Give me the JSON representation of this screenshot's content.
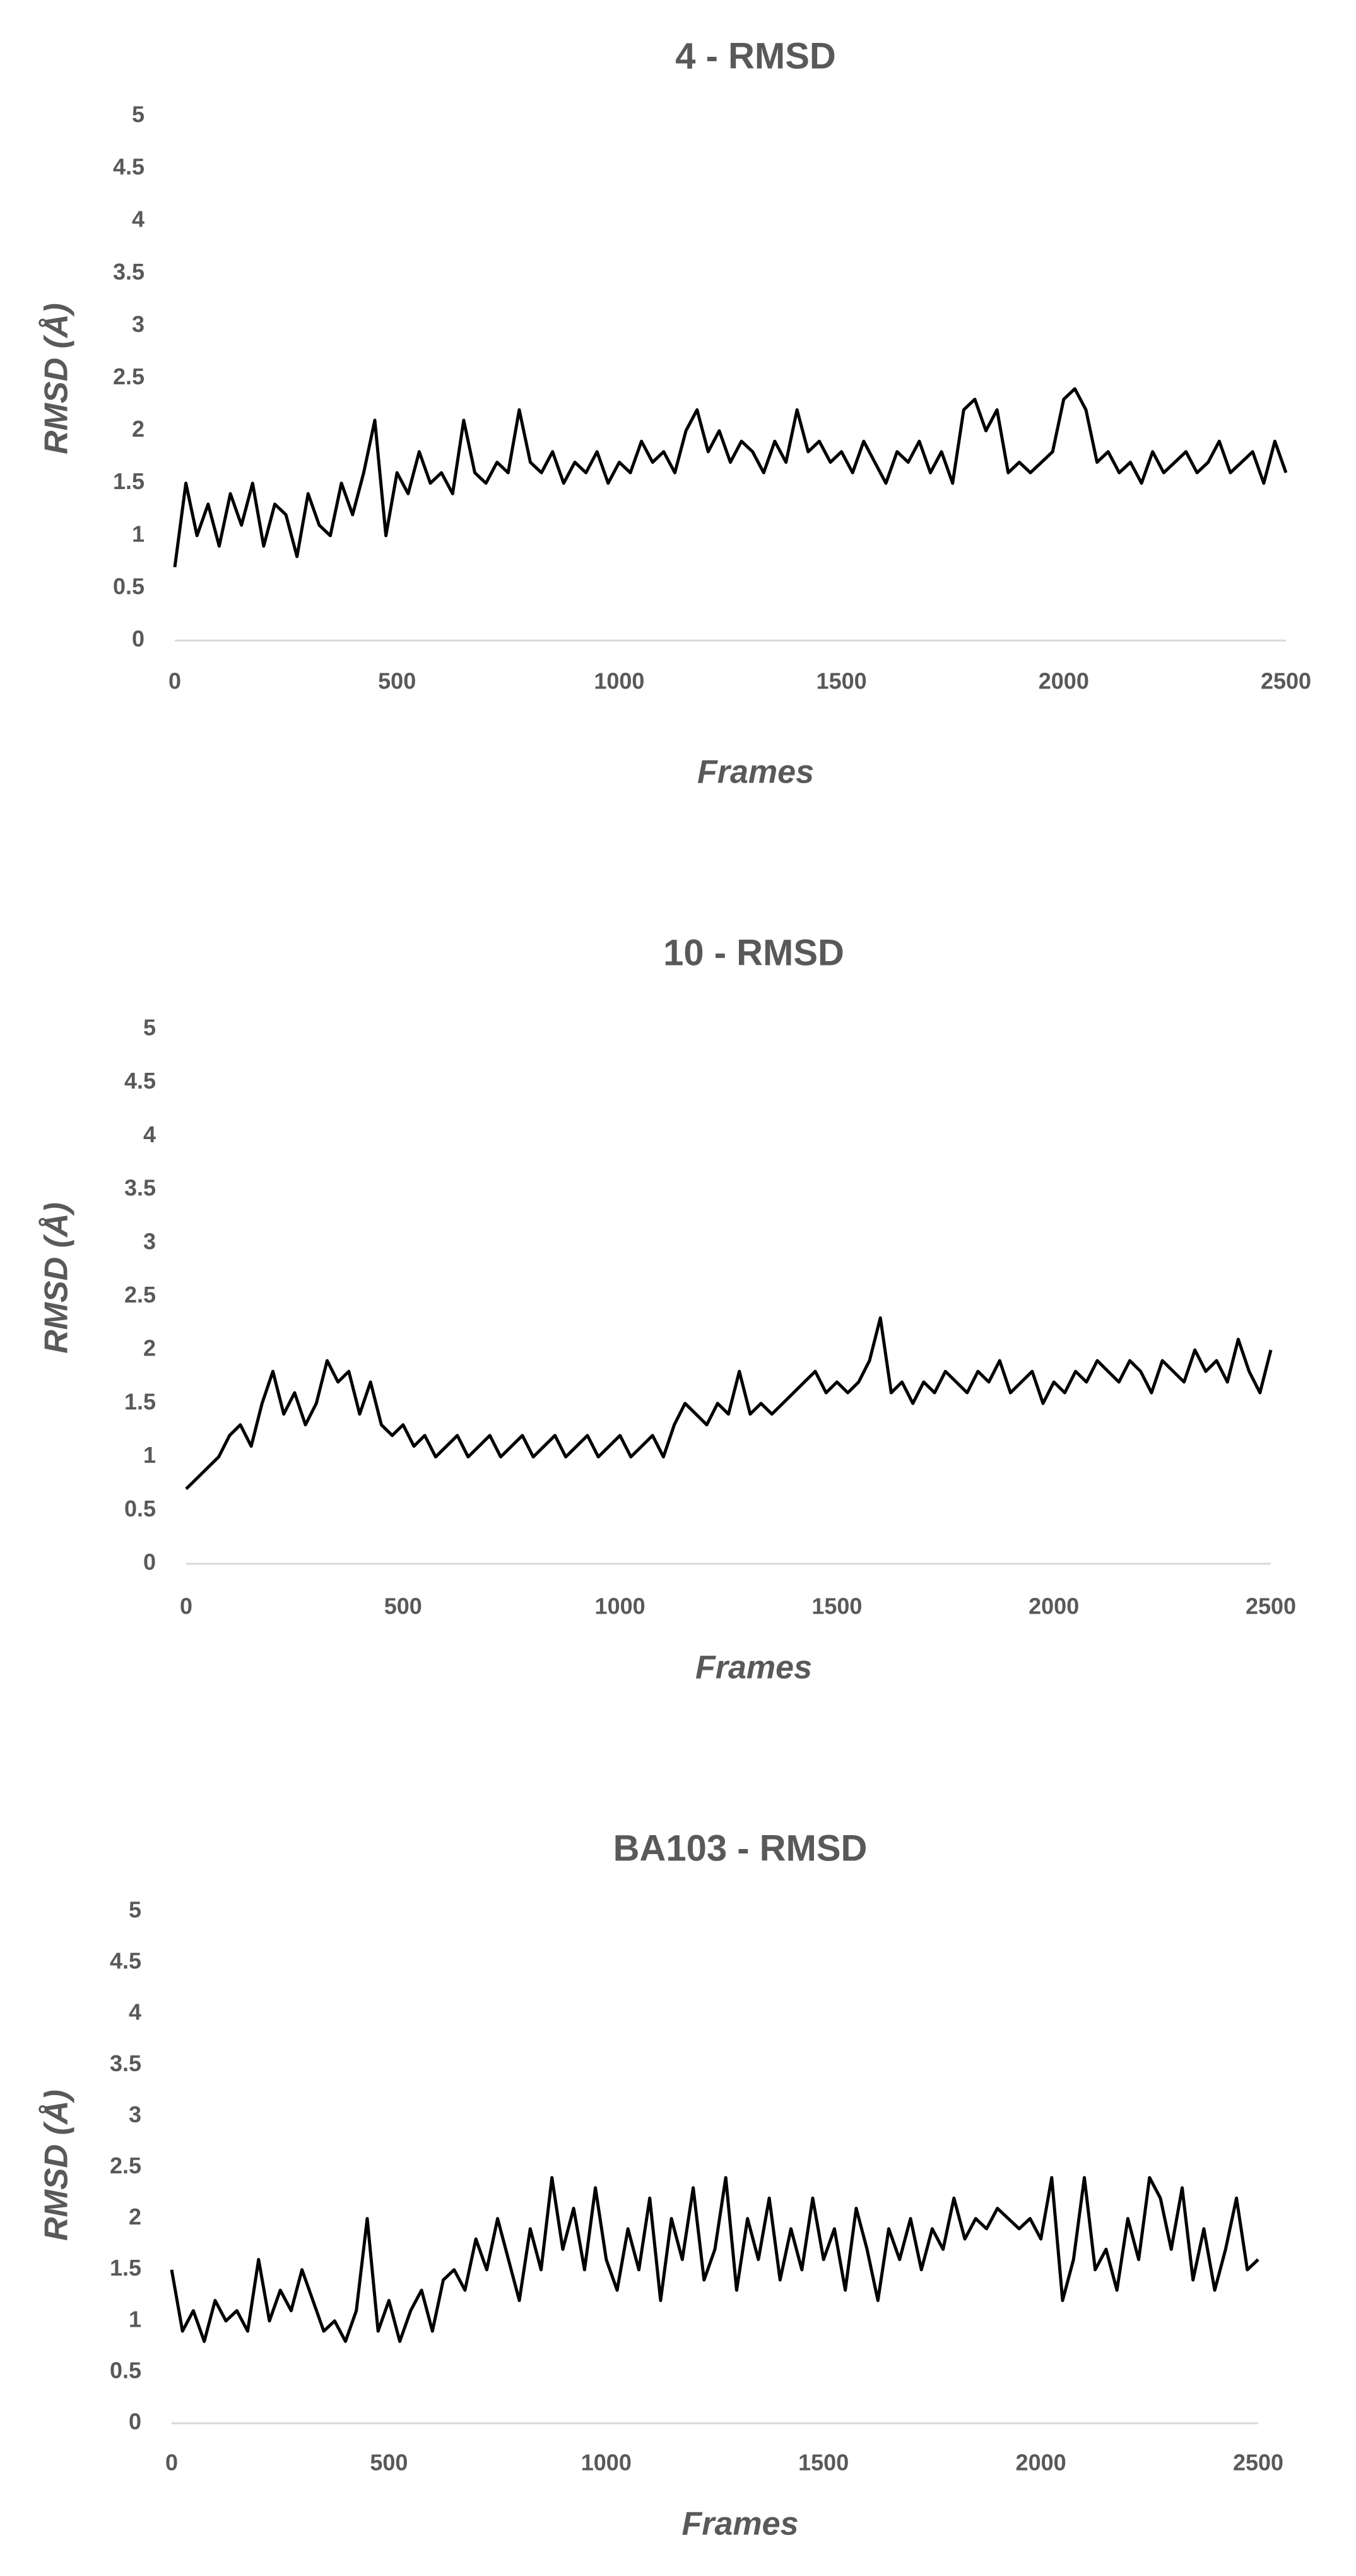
{
  "chart_data": [
    {
      "type": "line",
      "title": "4 - RMSD",
      "x_label": "Frames",
      "y_label": "RMSD (Å)",
      "xlim": [
        0,
        2500
      ],
      "xticks": [
        0,
        500,
        1000,
        1500,
        2000,
        2500
      ],
      "ylim": [
        0,
        5
      ],
      "yticks": [
        0,
        0.5,
        1,
        1.5,
        2,
        2.5,
        3,
        3.5,
        4,
        4.5,
        5
      ],
      "x": [
        0,
        25,
        50,
        75,
        100,
        125,
        150,
        175,
        200,
        225,
        250,
        275,
        300,
        325,
        350,
        375,
        400,
        425,
        450,
        475,
        500,
        525,
        550,
        575,
        600,
        625,
        650,
        675,
        700,
        725,
        750,
        775,
        800,
        825,
        850,
        875,
        900,
        925,
        950,
        975,
        1000,
        1025,
        1050,
        1075,
        1100,
        1125,
        1150,
        1175,
        1200,
        1225,
        1250,
        1275,
        1300,
        1325,
        1350,
        1375,
        1400,
        1425,
        1450,
        1475,
        1500,
        1525,
        1550,
        1575,
        1600,
        1625,
        1650,
        1675,
        1700,
        1725,
        1750,
        1775,
        1800,
        1825,
        1850,
        1875,
        1900,
        1925,
        1950,
        1975,
        2000,
        2025,
        2050,
        2075,
        2100,
        2125,
        2150,
        2175,
        2200,
        2225,
        2250,
        2275,
        2300,
        2325,
        2350,
        2375,
        2400,
        2425,
        2450,
        2475,
        2500
      ],
      "series": [
        {
          "color": "#000000",
          "values": [
            0.7,
            1.5,
            1.0,
            1.3,
            0.9,
            1.4,
            1.1,
            1.5,
            0.9,
            1.3,
            1.2,
            0.8,
            1.4,
            1.1,
            1.0,
            1.5,
            1.2,
            1.6,
            2.1,
            1.0,
            1.6,
            1.4,
            1.8,
            1.5,
            1.6,
            1.4,
            2.1,
            1.6,
            1.5,
            1.7,
            1.6,
            2.2,
            1.7,
            1.6,
            1.8,
            1.5,
            1.7,
            1.6,
            1.8,
            1.5,
            1.7,
            1.6,
            1.9,
            1.7,
            1.8,
            1.6,
            2.0,
            2.2,
            1.8,
            2.0,
            1.7,
            1.9,
            1.8,
            1.6,
            1.9,
            1.7,
            2.2,
            1.8,
            1.9,
            1.7,
            1.8,
            1.6,
            1.9,
            1.7,
            1.5,
            1.8,
            1.7,
            1.9,
            1.6,
            1.8,
            1.5,
            2.2,
            2.3,
            2.0,
            2.2,
            1.6,
            1.7,
            1.6,
            1.7,
            1.8,
            2.3,
            2.4,
            2.2,
            1.7,
            1.8,
            1.6,
            1.7,
            1.5,
            1.8,
            1.6,
            1.7,
            1.8,
            1.6,
            1.7,
            1.9,
            1.6,
            1.7,
            1.8,
            1.5,
            1.9,
            1.6
          ]
        }
      ]
    },
    {
      "type": "line",
      "title": "10 - RMSD",
      "x_label": "Frames",
      "y_label": "RMSD (Å)",
      "xlim": [
        0,
        2500
      ],
      "xticks": [
        0,
        500,
        1000,
        1500,
        2000,
        2500
      ],
      "ylim": [
        0,
        5
      ],
      "yticks": [
        0,
        0.5,
        1,
        1.5,
        2,
        2.5,
        3,
        3.5,
        4,
        4.5,
        5
      ],
      "x": [
        0,
        25,
        50,
        75,
        100,
        125,
        150,
        175,
        200,
        225,
        250,
        275,
        300,
        325,
        350,
        375,
        400,
        425,
        450,
        475,
        500,
        525,
        550,
        575,
        600,
        625,
        650,
        675,
        700,
        725,
        750,
        775,
        800,
        825,
        850,
        875,
        900,
        925,
        950,
        975,
        1000,
        1025,
        1050,
        1075,
        1100,
        1125,
        1150,
        1175,
        1200,
        1225,
        1250,
        1275,
        1300,
        1325,
        1350,
        1375,
        1400,
        1425,
        1450,
        1475,
        1500,
        1525,
        1550,
        1575,
        1600,
        1625,
        1650,
        1675,
        1700,
        1725,
        1750,
        1775,
        1800,
        1825,
        1850,
        1875,
        1900,
        1925,
        1950,
        1975,
        2000,
        2025,
        2050,
        2075,
        2100,
        2125,
        2150,
        2175,
        2200,
        2225,
        2250,
        2275,
        2300,
        2325,
        2350,
        2375,
        2400,
        2425,
        2450,
        2475,
        2500
      ],
      "series": [
        {
          "color": "#000000",
          "values": [
            0.7,
            0.8,
            0.9,
            1.0,
            1.2,
            1.3,
            1.1,
            1.5,
            1.8,
            1.4,
            1.6,
            1.3,
            1.5,
            1.9,
            1.7,
            1.8,
            1.4,
            1.7,
            1.3,
            1.2,
            1.3,
            1.1,
            1.2,
            1.0,
            1.1,
            1.2,
            1.0,
            1.1,
            1.2,
            1.0,
            1.1,
            1.2,
            1.0,
            1.1,
            1.2,
            1.0,
            1.1,
            1.2,
            1.0,
            1.1,
            1.2,
            1.0,
            1.1,
            1.2,
            1.0,
            1.3,
            1.5,
            1.4,
            1.3,
            1.5,
            1.4,
            1.8,
            1.4,
            1.5,
            1.4,
            1.5,
            1.6,
            1.7,
            1.8,
            1.6,
            1.7,
            1.6,
            1.7,
            1.9,
            2.3,
            1.6,
            1.7,
            1.5,
            1.7,
            1.6,
            1.8,
            1.7,
            1.6,
            1.8,
            1.7,
            1.9,
            1.6,
            1.7,
            1.8,
            1.5,
            1.7,
            1.6,
            1.8,
            1.7,
            1.9,
            1.8,
            1.7,
            1.9,
            1.8,
            1.6,
            1.9,
            1.8,
            1.7,
            2.0,
            1.8,
            1.9,
            1.7,
            2.1,
            1.8,
            1.6,
            2.0
          ]
        }
      ]
    },
    {
      "type": "line",
      "title": "BA103 - RMSD",
      "x_label": "Frames",
      "y_label": "RMSD (Å)",
      "xlim": [
        0,
        2500
      ],
      "xticks": [
        0,
        500,
        1000,
        1500,
        2000,
        2500
      ],
      "ylim": [
        0,
        5
      ],
      "yticks": [
        0,
        0.5,
        1,
        1.5,
        2,
        2.5,
        3,
        3.5,
        4,
        4.5,
        5
      ],
      "x": [
        0,
        25,
        50,
        75,
        100,
        125,
        150,
        175,
        200,
        225,
        250,
        275,
        300,
        325,
        350,
        375,
        400,
        425,
        450,
        475,
        500,
        525,
        550,
        575,
        600,
        625,
        650,
        675,
        700,
        725,
        750,
        775,
        800,
        825,
        850,
        875,
        900,
        925,
        950,
        975,
        1000,
        1025,
        1050,
        1075,
        1100,
        1125,
        1150,
        1175,
        1200,
        1225,
        1250,
        1275,
        1300,
        1325,
        1350,
        1375,
        1400,
        1425,
        1450,
        1475,
        1500,
        1525,
        1550,
        1575,
        1600,
        1625,
        1650,
        1675,
        1700,
        1725,
        1750,
        1775,
        1800,
        1825,
        1850,
        1875,
        1900,
        1925,
        1950,
        1975,
        2000,
        2025,
        2050,
        2075,
        2100,
        2125,
        2150,
        2175,
        2200,
        2225,
        2250,
        2275,
        2300,
        2325,
        2350,
        2375,
        2400,
        2425,
        2450,
        2475,
        2500
      ],
      "series": [
        {
          "color": "#000000",
          "values": [
            1.5,
            0.9,
            1.1,
            0.8,
            1.2,
            1.0,
            1.1,
            0.9,
            1.6,
            1.0,
            1.3,
            1.1,
            1.5,
            1.2,
            0.9,
            1.0,
            0.8,
            1.1,
            2.0,
            0.9,
            1.2,
            0.8,
            1.1,
            1.3,
            0.9,
            1.4,
            1.5,
            1.3,
            1.8,
            1.5,
            2.0,
            1.6,
            1.2,
            1.9,
            1.5,
            2.4,
            1.7,
            2.1,
            1.5,
            2.3,
            1.6,
            1.3,
            1.9,
            1.5,
            2.2,
            1.2,
            2.0,
            1.6,
            2.3,
            1.4,
            1.7,
            2.4,
            1.3,
            2.0,
            1.6,
            2.2,
            1.4,
            1.9,
            1.5,
            2.2,
            1.6,
            1.9,
            1.3,
            2.1,
            1.7,
            1.2,
            1.9,
            1.6,
            2.0,
            1.5,
            1.9,
            1.7,
            2.2,
            1.8,
            2.0,
            1.9,
            2.1,
            2.0,
            1.9,
            2.0,
            1.8,
            2.4,
            1.2,
            1.6,
            2.4,
            1.5,
            1.7,
            1.3,
            2.0,
            1.6,
            2.4,
            2.2,
            1.7,
            2.3,
            1.4,
            1.9,
            1.3,
            1.7,
            2.2,
            1.5,
            1.6
          ]
        }
      ]
    }
  ]
}
